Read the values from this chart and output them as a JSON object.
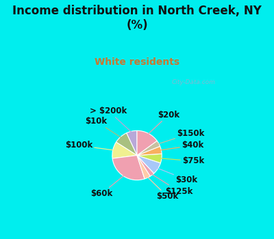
{
  "title": "Income distribution in North Creek, NY\n(%)",
  "subtitle": "White residents",
  "title_color": "#111111",
  "subtitle_color": "#c87830",
  "bg_cyan": "#00eeee",
  "bg_chart_color": "#d8f0e0",
  "watermark": "City-Data.com",
  "labels": [
    "> $200k",
    "$10k",
    "$100k",
    "$60k",
    "$50k",
    "$125k",
    "$30k",
    "$75k",
    "$40k",
    "$150k",
    "$20k"
  ],
  "values": [
    7,
    9,
    11,
    28,
    4,
    3,
    8,
    6,
    5,
    4,
    15
  ],
  "colors": [
    "#b8a8d8",
    "#a8c080",
    "#f0f090",
    "#f0a0b0",
    "#ffcca8",
    "#f0a0b0",
    "#a8c8f8",
    "#c8e858",
    "#f8b060",
    "#c8c0a0",
    "#f0a0b0"
  ],
  "startangle": 90,
  "label_fontsize": 8.5
}
